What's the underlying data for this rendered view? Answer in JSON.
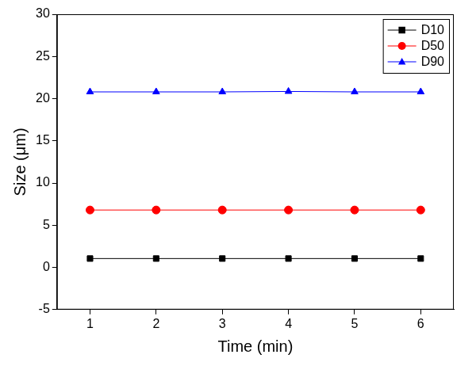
{
  "chart_data": {
    "type": "line",
    "x_label": "Time (min)",
    "y_label": "Size (μm)",
    "x": [
      1,
      2,
      3,
      4,
      5,
      6
    ],
    "series": [
      {
        "name": "D10",
        "color": "#000000",
        "marker": "square",
        "values": [
          1.05,
          1.05,
          1.05,
          1.05,
          1.05,
          1.05
        ]
      },
      {
        "name": "D50",
        "color": "#ff0000",
        "marker": "circle",
        "values": [
          6.8,
          6.8,
          6.8,
          6.8,
          6.8,
          6.8
        ]
      },
      {
        "name": "D90",
        "color": "#0000ff",
        "marker": "triangle",
        "values": [
          20.8,
          20.8,
          20.8,
          20.85,
          20.8,
          20.8
        ]
      }
    ],
    "xlim": [
      0.5,
      6.5
    ],
    "xticks": [
      1,
      2,
      3,
      4,
      5,
      6
    ],
    "ylim": [
      -5,
      30
    ],
    "yticks": [
      -5,
      0,
      5,
      10,
      15,
      20,
      25,
      30
    ],
    "grid": false,
    "legend": "top-right"
  }
}
